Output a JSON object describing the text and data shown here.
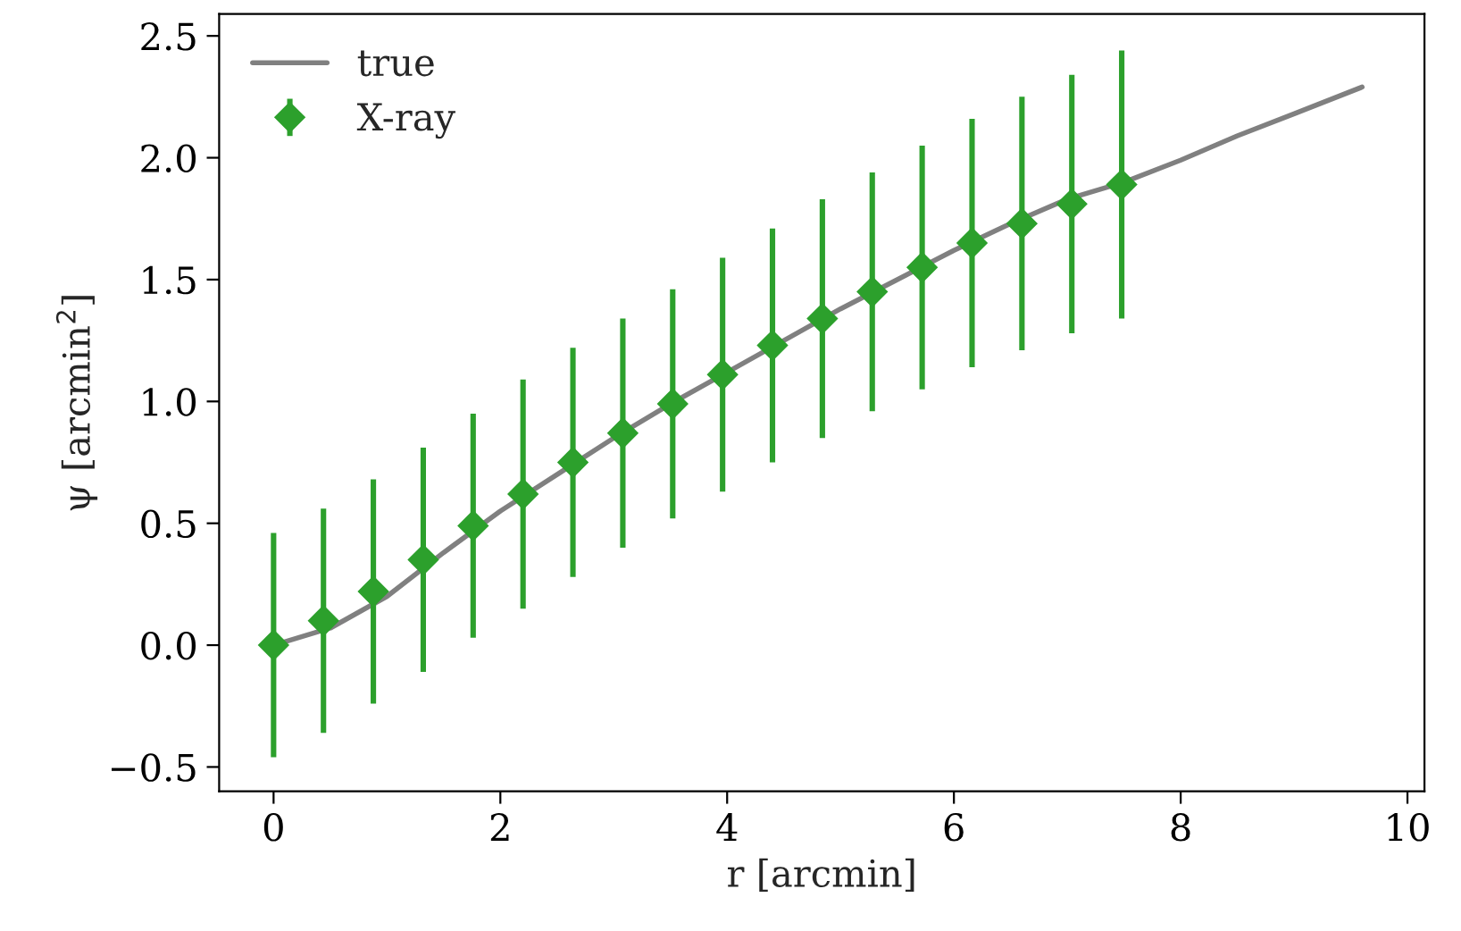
{
  "chart_data": {
    "type": "line",
    "xlabel": "r [arcmin]",
    "ylabel": "ψ [arcmin$^{2}$]",
    "xlim": [
      -0.48,
      10.15
    ],
    "ylim": [
      -0.6,
      2.59
    ],
    "xticks": [
      0,
      2,
      4,
      6,
      8,
      10
    ],
    "yticks": [
      {
        "value": -0.5,
        "label": "−0.5"
      },
      {
        "value": 0,
        "label": "0.0"
      },
      {
        "value": 0.5,
        "label": "0.5"
      },
      {
        "value": 1,
        "label": "1.0"
      },
      {
        "value": 1.5,
        "label": "1.5"
      },
      {
        "value": 2,
        "label": "2.0"
      },
      {
        "value": 2.5,
        "label": "2.5"
      }
    ],
    "grid": false,
    "legend": "top left",
    "series": [
      {
        "name": "true",
        "color": "#808080",
        "marker": "none",
        "line_style": "solid",
        "x": [
          0,
          0.5,
          1,
          1.5,
          2,
          2.5,
          3,
          3.5,
          4,
          4.5,
          5,
          5.5,
          6,
          6.5,
          7,
          7.5,
          8,
          8.5,
          9,
          9.6
        ],
        "values": [
          0,
          0.07,
          0.2,
          0.38,
          0.55,
          0.7,
          0.85,
          0.99,
          1.12,
          1.25,
          1.38,
          1.5,
          1.62,
          1.73,
          1.83,
          1.9,
          1.99,
          2.09,
          2.18,
          2.29
        ]
      },
      {
        "name": "X-ray",
        "type": "scatter",
        "color": "#2ca02c",
        "marker": "diamond",
        "x": [
          0,
          0.44,
          0.88,
          1.32,
          1.76,
          2.2,
          2.64,
          3.08,
          3.52,
          3.96,
          4.4,
          4.84,
          5.28,
          5.72,
          6.16,
          6.6,
          7.04,
          7.48
        ],
        "values": [
          0.0,
          0.1,
          0.22,
          0.35,
          0.49,
          0.62,
          0.75,
          0.87,
          0.99,
          1.11,
          1.23,
          1.34,
          1.45,
          1.55,
          1.65,
          1.73,
          1.81,
          1.89
        ],
        "errors": [
          0.46,
          0.46,
          0.46,
          0.46,
          0.46,
          0.47,
          0.47,
          0.47,
          0.47,
          0.48,
          0.48,
          0.49,
          0.49,
          0.5,
          0.51,
          0.52,
          0.53,
          0.55
        ]
      }
    ]
  }
}
